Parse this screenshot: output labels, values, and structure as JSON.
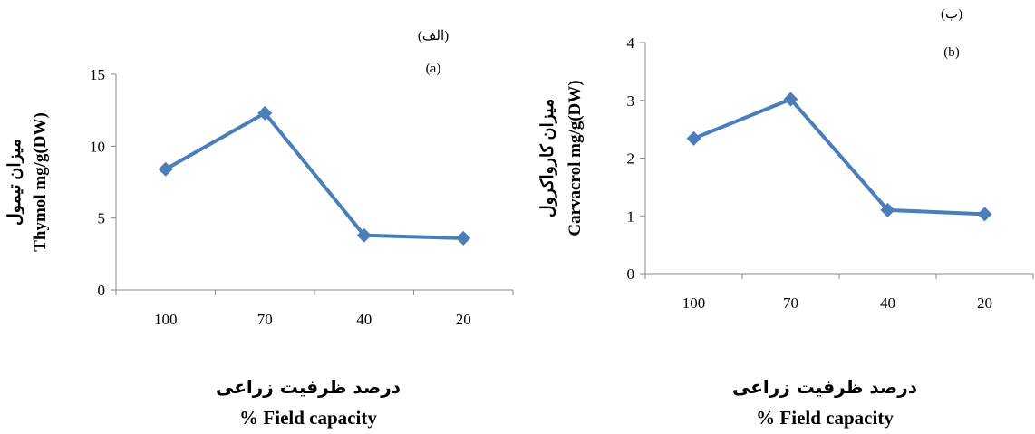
{
  "colors": {
    "series": "#4a7ebb",
    "axis": "#888888"
  },
  "chart_data": [
    {
      "type": "line",
      "panel_label_fa": "(الف)",
      "panel_label_en": "(a)",
      "categories": [
        "100",
        "70",
        "40",
        "20"
      ],
      "series": [
        {
          "values": [
            8.4,
            12.3,
            3.8,
            3.6
          ]
        }
      ],
      "ylim": [
        0,
        15
      ],
      "yticks": [
        "0",
        "5",
        "10",
        "15"
      ],
      "ylabel_fa": "میزان تیمول",
      "ylabel_en": "Thymol mg/g(DW)",
      "xlabel_fa": "درصد ظرفیت زراعی",
      "xlabel_en": "% Field capacity",
      "marker": "diamond",
      "grid": false
    },
    {
      "type": "line",
      "panel_label_fa": "(ب)",
      "panel_label_en": "(b)",
      "categories": [
        "100",
        "70",
        "40",
        "20"
      ],
      "series": [
        {
          "values": [
            2.34,
            3.02,
            1.1,
            1.03
          ]
        }
      ],
      "ylim": [
        0,
        4
      ],
      "yticks": [
        "0",
        "1",
        "2",
        "3",
        "4"
      ],
      "ylabel_fa": "میزان کارواکرول",
      "ylabel_en": "Carvacrol mg/g(DW)",
      "xlabel_fa": "درصد ظرفیت زراعی",
      "xlabel_en": "% Field capacity",
      "marker": "diamond",
      "grid": false
    }
  ]
}
